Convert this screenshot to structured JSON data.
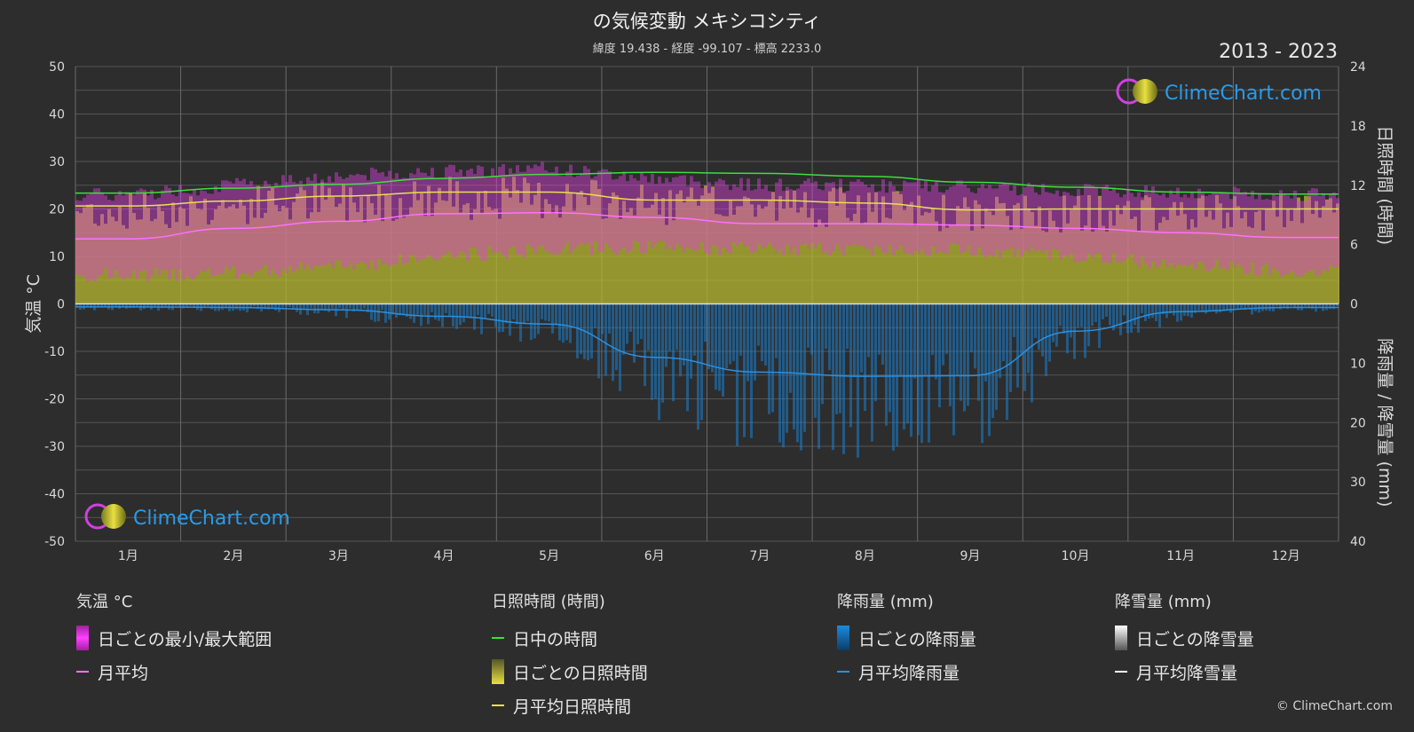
{
  "header": {
    "title": "の気候変動 メキシコシティ",
    "subtitle": "緯度 19.438 - 経度 -99.107 - 標高 2233.0",
    "years": "2013 - 2023"
  },
  "watermark": {
    "text": "ClimeChart.com"
  },
  "copyright": "© ClimeChart.com",
  "legend": {
    "temperature": {
      "title": "気温 °C",
      "daily_range": "日ごとの最小/最大範囲",
      "monthly_avg": "月平均"
    },
    "sunshine": {
      "title": "日照時間 (時間)",
      "daylight": "日中の時間",
      "daily_sunshine": "日ごとの日照時間",
      "monthly_avg_sunshine": "月平均日照時間"
    },
    "rain": {
      "title": "降雨量 (mm)",
      "daily_rain": "日ごとの降雨量",
      "monthly_avg_rain": "月平均降雨量"
    },
    "snow": {
      "title": "降雪量 (mm)",
      "daily_snow": "日ごとの降雪量",
      "monthly_avg_snow": "月平均降雪量"
    }
  },
  "colors": {
    "temp_range": "#e040e0",
    "temp_avg": "#ff70ff",
    "daylight": "#40dd40",
    "sunshine": "#b8b830",
    "sunshine_avg": "#e8e050",
    "rain": "#1a7fcf",
    "rain_avg": "#2a90e0",
    "snow": "#ffffff"
  },
  "chart_data": {
    "type": "line",
    "categories": [
      "1月",
      "2月",
      "3月",
      "4月",
      "5月",
      "6月",
      "7月",
      "8月",
      "9月",
      "10月",
      "11月",
      "12月"
    ],
    "left_axis": {
      "label": "気温 °C",
      "ylim": [
        -50,
        50
      ],
      "ticks": [
        50,
        40,
        30,
        20,
        10,
        0,
        -10,
        -20,
        -30,
        -40,
        -50
      ]
    },
    "right_axis_top": {
      "label": "日照時間 (時間)",
      "ylim": [
        0,
        24
      ],
      "ticks": [
        24,
        18,
        12,
        6,
        0
      ]
    },
    "right_axis_bottom": {
      "label": "降雨量 / 降雪量 (mm)",
      "ylim": [
        0,
        40
      ],
      "ticks": [
        10,
        20,
        30,
        40
      ]
    },
    "grid": true,
    "series": [
      {
        "name": "日中の時間",
        "axis": "sunshine",
        "values": [
          11.2,
          11.7,
          12.1,
          12.7,
          13.1,
          13.3,
          13.2,
          12.9,
          12.3,
          11.8,
          11.3,
          11.1
        ]
      },
      {
        "name": "月平均日照時間",
        "axis": "sunshine",
        "values": [
          9.9,
          10.4,
          10.9,
          11.3,
          11.3,
          10.5,
          10.5,
          10.2,
          9.5,
          9.6,
          9.6,
          9.6
        ]
      },
      {
        "name": "月平均",
        "axis": "temperature",
        "values": [
          13.7,
          15.9,
          17.4,
          19.0,
          19.2,
          18.2,
          16.9,
          16.9,
          16.6,
          15.9,
          15.0,
          14.0
        ]
      },
      {
        "name": "日ごとの最小/最大範囲",
        "axis": "temperature",
        "min": [
          6.0,
          6.5,
          8.0,
          10.0,
          11.5,
          12.0,
          11.5,
          11.5,
          11.5,
          10.0,
          8.5,
          7.0
        ],
        "max": [
          23.0,
          25.0,
          27.0,
          28.0,
          28.5,
          26.5,
          25.0,
          25.0,
          24.5,
          24.0,
          23.5,
          23.0
        ]
      },
      {
        "name": "月平均降雨量",
        "axis": "rain",
        "values": [
          0.5,
          0.6,
          1.0,
          2.1,
          3.4,
          9.0,
          11.5,
          12.2,
          12.1,
          4.6,
          1.3,
          0.6
        ]
      },
      {
        "name": "月平均降雪量",
        "axis": "rain",
        "values": [
          0,
          0,
          0,
          0,
          0,
          0,
          0,
          0,
          0,
          0,
          0,
          0
        ]
      }
    ]
  }
}
